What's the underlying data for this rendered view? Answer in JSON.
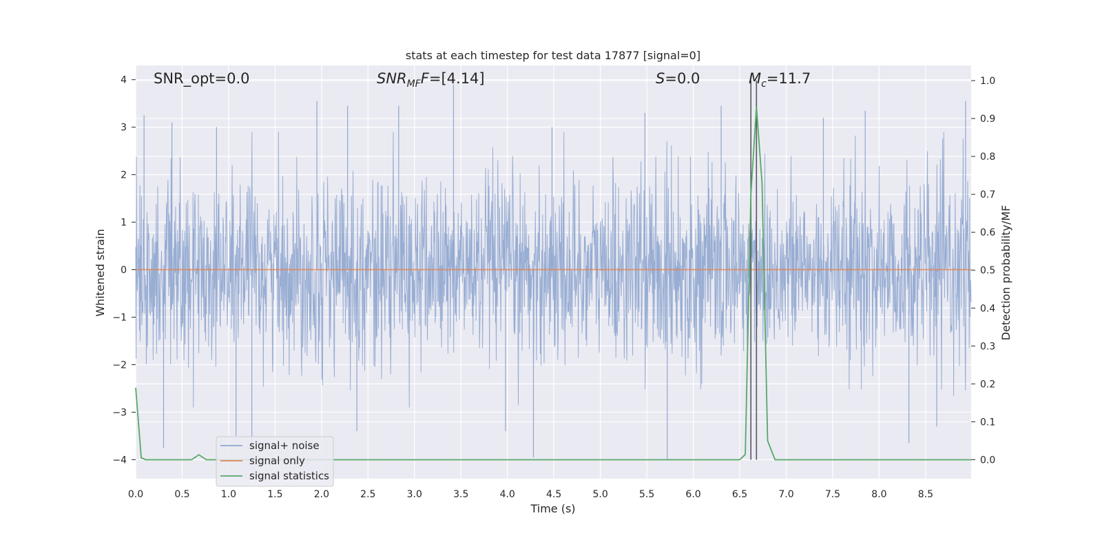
{
  "chart_data": {
    "type": "line",
    "title": "stats at each timestep for test data 17877 [signal=0]",
    "xlabel": "Time (s)",
    "ylabel": "Whitened strain",
    "ylabel_right": "Detection probability/MF",
    "xlim": [
      0,
      8.99
    ],
    "ylim": [
      -4.4,
      4.3
    ],
    "ylim_right": [
      -0.05,
      1.04
    ],
    "grid": true,
    "legend_position": "lower-left",
    "x_ticks": [
      "0.0",
      "0.5",
      "1.0",
      "1.5",
      "2.0",
      "2.5",
      "3.0",
      "3.5",
      "4.0",
      "4.5",
      "5.0",
      "5.5",
      "6.0",
      "6.5",
      "7.0",
      "7.5",
      "8.0",
      "8.5"
    ],
    "y_ticks": [
      "4",
      "3",
      "2",
      "1",
      "0",
      "−1",
      "−2",
      "−3",
      "−4"
    ],
    "y_ticks_right": [
      "1.0",
      "0.9",
      "0.8",
      "0.7",
      "0.6",
      "0.5",
      "0.4",
      "0.3",
      "0.2",
      "0.1",
      "0.0"
    ],
    "annotations": [
      {
        "id": "snr-opt",
        "text": "SNR_opt=0.0",
        "x": 0.2
      },
      {
        "id": "snr-mf",
        "main": "SNR",
        "sub": "MF",
        "rest": "F=[4.14]",
        "x": 2.6
      },
      {
        "id": "s-stat",
        "main": "S",
        "rest": "=0.0",
        "x": 5.6
      },
      {
        "id": "mc",
        "main": "M",
        "sub": "c",
        "rest": "=11.7",
        "x": 6.6
      }
    ],
    "vlines": [
      6.62,
      6.68
    ],
    "series": [
      {
        "name": "signal+ noise",
        "color": "#8fa6cf",
        "description": "whitened strain noise, roughly ±1.7 band with spikes to about ±4",
        "spikes": [
          {
            "x": 0.09,
            "y": 3.25
          },
          {
            "x": 0.39,
            "y": 3.1
          },
          {
            "x": 0.87,
            "y": 3.0
          },
          {
            "x": 1.95,
            "y": 3.55
          },
          {
            "x": 2.28,
            "y": 3.45
          },
          {
            "x": 2.83,
            "y": 3.45
          },
          {
            "x": 3.42,
            "y": 3.9
          },
          {
            "x": 4.48,
            "y": 3.0
          },
          {
            "x": 5.48,
            "y": 3.3
          },
          {
            "x": 6.3,
            "y": 3.45
          },
          {
            "x": 7.4,
            "y": 3.2
          },
          {
            "x": 7.85,
            "y": 3.35
          },
          {
            "x": 8.93,
            "y": 3.55
          },
          {
            "x": 0.3,
            "y": -3.75
          },
          {
            "x": 1.08,
            "y": -3.5
          },
          {
            "x": 1.25,
            "y": -3.8
          },
          {
            "x": 2.38,
            "y": -3.4
          },
          {
            "x": 3.98,
            "y": -3.4
          },
          {
            "x": 4.28,
            "y": -3.95
          },
          {
            "x": 5.72,
            "y": -4.0
          },
          {
            "x": 8.32,
            "y": -3.65
          },
          {
            "x": 8.62,
            "y": -3.3
          }
        ]
      },
      {
        "name": "signal only",
        "color": "#dd8452",
        "description": "flat at zero",
        "x": [
          0,
          8.99
        ],
        "y": [
          0,
          0
        ]
      },
      {
        "name": "signal statistics",
        "color": "#55a868",
        "axis": "right",
        "x": [
          0.0,
          0.06,
          0.11,
          0.3,
          0.6,
          0.68,
          0.76,
          1.2,
          6.0,
          6.5,
          6.56,
          6.62,
          6.68,
          6.74,
          6.8,
          6.88,
          8.99
        ],
        "y": [
          0.19,
          0.005,
          0.0,
          0.0,
          0.0,
          0.013,
          0.0,
          0.0,
          0.0,
          0.0,
          0.014,
          0.7,
          0.93,
          0.73,
          0.05,
          0.0,
          0.0
        ]
      }
    ]
  }
}
